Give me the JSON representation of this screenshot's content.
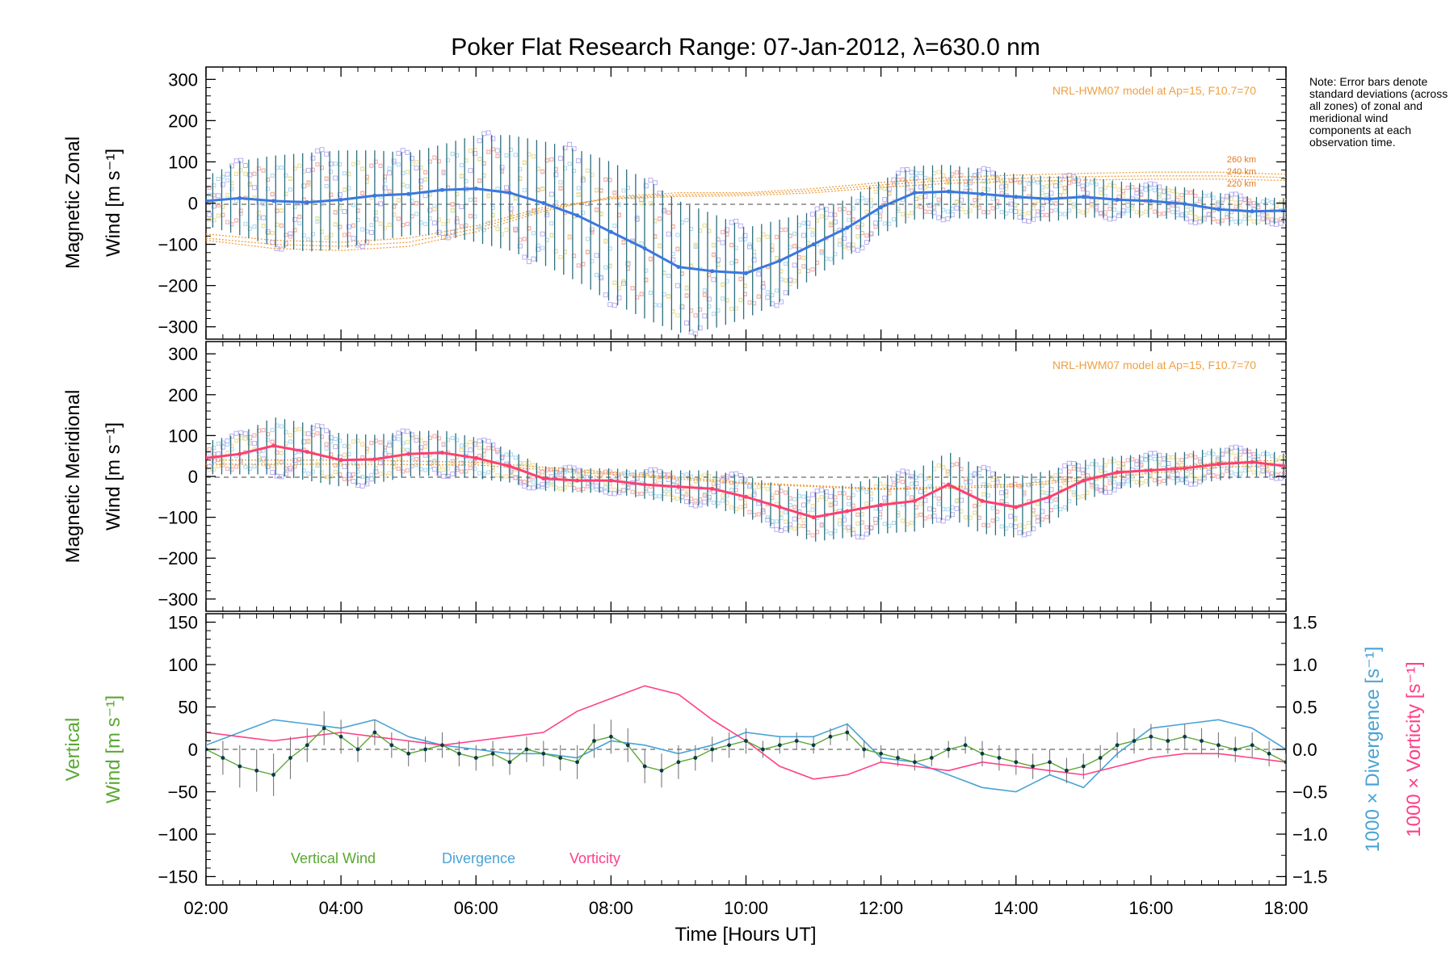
{
  "figure": {
    "title": "Poker Flat Research Range: 07-Jan-2012, λ=630.0 nm",
    "note": "Note: Error bars denote standard deviations (across all zones) of zonal and meridional wind components at each observation time.",
    "xlabel": "Time [Hours UT]",
    "xticks": [
      "02:00",
      "04:00",
      "06:00",
      "08:00",
      "10:00",
      "12:00",
      "14:00",
      "16:00",
      "18:00"
    ],
    "model_label": "NRL-HWM07 model at Ap=15, F10.7=70",
    "altitudes": [
      "260 km",
      "240 km",
      "220 km"
    ],
    "legend": [
      "Vertical Wind",
      "Divergence",
      "Vorticity"
    ]
  },
  "panels": {
    "zonal": {
      "ylabel_line1": "Magnetic Zonal",
      "ylabel_line2": "Wind [m s⁻¹]",
      "yticks": [
        "300",
        "200",
        "100",
        "0",
        "−100",
        "−200",
        "−300"
      ]
    },
    "meridional": {
      "ylabel_line1": "Magnetic Meridional",
      "ylabel_line2": "Wind [m s⁻¹]",
      "yticks": [
        "300",
        "200",
        "100",
        "0",
        "−100",
        "−200",
        "−300"
      ]
    },
    "vertical": {
      "ylabel_line1": "Vertical",
      "ylabel_line2": "Wind [m s⁻¹]",
      "yticks": [
        "150",
        "100",
        "50",
        "0",
        "−50",
        "−100",
        "−150"
      ],
      "right_label_div": "1000 × Divergence [s⁻¹]",
      "right_label_vort": "1000 × Vorticity [s⁻¹]",
      "right_ticks": [
        "1.5",
        "1.0",
        "0.5",
        "0.0",
        "−0.5",
        "−1.0",
        "−1.5"
      ]
    }
  },
  "colors": {
    "zonal_mean": "#3a78e0",
    "meridional_mean": "#ff3f6f",
    "vertical": "#5aa832",
    "divergence": "#4aa3d6",
    "vorticity": "#ff3f88",
    "model": "#f0a040",
    "scatter_purple": "#b8b0f0",
    "errorbar": "#2c6f80"
  },
  "chart_data": [
    {
      "type": "line",
      "title": "Magnetic Zonal Wind",
      "xlabel": "Time [Hours UT]",
      "ylabel": "Magnetic Zonal Wind [m s⁻¹]",
      "xlim": [
        2.0,
        18.0
      ],
      "ylim": [
        -330,
        330
      ],
      "series": [
        {
          "name": "mean",
          "x": [
            2.0,
            2.5,
            3.0,
            3.5,
            4.0,
            4.5,
            5.0,
            5.5,
            6.0,
            6.5,
            7.0,
            7.5,
            8.0,
            8.5,
            9.0,
            9.5,
            10.0,
            10.5,
            11.0,
            11.5,
            12.0,
            12.5,
            13.0,
            13.5,
            14.0,
            14.5,
            15.0,
            15.5,
            16.0,
            16.5,
            17.0,
            17.5,
            18.0
          ],
          "y": [
            5,
            12,
            5,
            2,
            8,
            18,
            22,
            32,
            35,
            25,
            0,
            -30,
            -70,
            -110,
            -155,
            -165,
            -170,
            -140,
            -100,
            -60,
            -10,
            25,
            28,
            22,
            15,
            10,
            15,
            8,
            5,
            -2,
            -15,
            -20,
            -18
          ],
          "yerr": [
            60,
            90,
            110,
            120,
            120,
            110,
            100,
            110,
            130,
            140,
            150,
            160,
            170,
            170,
            160,
            140,
            110,
            100,
            80,
            70,
            65,
            65,
            65,
            60,
            55,
            55,
            50,
            45,
            40,
            40,
            40,
            35,
            30
          ]
        },
        {
          "name": "model 260 km",
          "x": [
            2,
            3,
            4,
            5,
            6,
            7,
            8,
            9,
            10,
            11,
            12,
            13,
            14,
            15,
            16,
            17,
            18
          ],
          "y": [
            -90,
            -110,
            -115,
            -105,
            -70,
            -20,
            15,
            25,
            25,
            35,
            50,
            62,
            68,
            72,
            75,
            75,
            70
          ]
        },
        {
          "name": "model 240 km",
          "x": [
            2,
            3,
            4,
            5,
            6,
            7,
            8,
            9,
            10,
            11,
            12,
            13,
            14,
            15,
            16,
            17,
            18
          ],
          "y": [
            -85,
            -100,
            -105,
            -95,
            -62,
            -15,
            12,
            20,
            22,
            30,
            44,
            55,
            60,
            64,
            66,
            66,
            62
          ]
        },
        {
          "name": "model 220 km",
          "x": [
            2,
            3,
            4,
            5,
            6,
            7,
            8,
            9,
            10,
            11,
            12,
            13,
            14,
            15,
            16,
            17,
            18
          ],
          "y": [
            -75,
            -90,
            -95,
            -85,
            -55,
            -10,
            10,
            16,
            18,
            25,
            38,
            48,
            52,
            56,
            58,
            58,
            55
          ]
        }
      ]
    },
    {
      "type": "line",
      "title": "Magnetic Meridional Wind",
      "xlabel": "Time [Hours UT]",
      "ylabel": "Magnetic Meridional Wind [m s⁻¹]",
      "xlim": [
        2.0,
        18.0
      ],
      "ylim": [
        -330,
        330
      ],
      "series": [
        {
          "name": "mean",
          "x": [
            2.0,
            2.5,
            3.0,
            3.5,
            4.0,
            4.5,
            5.0,
            5.5,
            6.0,
            6.5,
            7.0,
            7.5,
            8.0,
            8.5,
            9.0,
            9.5,
            10.0,
            10.5,
            11.0,
            11.5,
            12.0,
            12.5,
            13.0,
            13.5,
            14.0,
            14.5,
            15.0,
            15.5,
            16.0,
            16.5,
            17.0,
            17.5,
            18.0
          ],
          "y": [
            45,
            55,
            75,
            60,
            40,
            42,
            55,
            58,
            45,
            25,
            -5,
            -10,
            -10,
            -20,
            -25,
            -30,
            -50,
            -75,
            -100,
            -85,
            -70,
            -60,
            -20,
            -60,
            -75,
            -50,
            -10,
            10,
            15,
            20,
            30,
            35,
            25
          ],
          "yerr": [
            40,
            50,
            70,
            70,
            65,
            60,
            55,
            55,
            50,
            40,
            30,
            30,
            30,
            35,
            40,
            45,
            50,
            55,
            60,
            65,
            70,
            75,
            80,
            80,
            75,
            65,
            50,
            40,
            40,
            40,
            40,
            35,
            30
          ]
        },
        {
          "name": "model 260 km",
          "x": [
            2,
            4,
            6,
            8,
            10,
            12,
            14,
            16,
            17,
            18
          ],
          "y": [
            40,
            40,
            35,
            10,
            -15,
            -30,
            -20,
            15,
            35,
            40
          ]
        },
        {
          "name": "model 220 km",
          "x": [
            2,
            4,
            6,
            8,
            10,
            12,
            14,
            16,
            17,
            18
          ],
          "y": [
            30,
            30,
            28,
            5,
            -18,
            -32,
            -25,
            8,
            22,
            28
          ]
        }
      ]
    },
    {
      "type": "line",
      "title": "Vertical Wind, Divergence, Vorticity",
      "xlabel": "Time [Hours UT]",
      "ylabel": "Vertical Wind [m s⁻¹]",
      "y2label": "1000 × Divergence [s⁻¹] / 1000 × Vorticity [s⁻¹]",
      "xlim": [
        2.0,
        18.0
      ],
      "ylim": [
        -160,
        160
      ],
      "y2lim": [
        -1.6,
        1.6
      ],
      "series": [
        {
          "name": "Vertical Wind",
          "axis": "left",
          "x": [
            2.0,
            2.25,
            2.5,
            2.75,
            3.0,
            3.25,
            3.5,
            3.75,
            4.0,
            4.25,
            4.5,
            4.75,
            5.0,
            5.25,
            5.5,
            5.75,
            6.0,
            6.25,
            6.5,
            6.75,
            7.0,
            7.25,
            7.5,
            7.75,
            8.0,
            8.25,
            8.5,
            8.75,
            9.0,
            9.25,
            9.5,
            9.75,
            10.0,
            10.25,
            10.5,
            10.75,
            11.0,
            11.25,
            11.5,
            11.75,
            12.0,
            12.25,
            12.5,
            12.75,
            13.0,
            13.25,
            13.5,
            13.75,
            14.0,
            14.25,
            14.5,
            14.75,
            15.0,
            15.25,
            15.5,
            15.75,
            16.0,
            16.25,
            16.5,
            16.75,
            17.0,
            17.25,
            17.5,
            17.75,
            18.0
          ],
          "y": [
            0,
            -10,
            -20,
            -25,
            -30,
            -10,
            5,
            25,
            15,
            0,
            20,
            5,
            -5,
            0,
            5,
            -5,
            -10,
            -5,
            -15,
            0,
            -5,
            -10,
            -15,
            10,
            15,
            5,
            -20,
            -25,
            -15,
            -10,
            0,
            5,
            10,
            0,
            5,
            10,
            5,
            15,
            20,
            0,
            -5,
            -10,
            -15,
            -10,
            0,
            5,
            -5,
            -10,
            -15,
            -20,
            -15,
            -25,
            -20,
            -10,
            5,
            10,
            15,
            10,
            15,
            10,
            5,
            0,
            5,
            -5,
            -15
          ],
          "yerr": [
            10,
            20,
            25,
            25,
            25,
            25,
            20,
            20,
            20,
            15,
            15,
            15,
            15,
            15,
            15,
            15,
            15,
            15,
            15,
            15,
            15,
            15,
            20,
            20,
            20,
            20,
            20,
            20,
            20,
            15,
            15,
            15,
            15,
            10,
            10,
            10,
            10,
            10,
            10,
            10,
            10,
            10,
            10,
            10,
            10,
            10,
            15,
            15,
            15,
            15,
            15,
            15,
            15,
            15,
            15,
            15,
            15,
            15,
            15,
            15,
            15,
            15,
            15,
            15,
            10
          ]
        },
        {
          "name": "Divergence",
          "axis": "right",
          "x": [
            2.0,
            2.5,
            3.0,
            3.5,
            4.0,
            4.5,
            5.0,
            5.5,
            6.0,
            6.5,
            7.0,
            7.5,
            8.0,
            8.5,
            9.0,
            9.5,
            10.0,
            10.5,
            11.0,
            11.5,
            12.0,
            12.5,
            13.0,
            13.5,
            14.0,
            14.5,
            15.0,
            15.5,
            16.0,
            16.5,
            17.0,
            17.5,
            18.0
          ],
          "y": [
            0.05,
            0.2,
            0.35,
            0.3,
            0.25,
            0.35,
            0.15,
            0.05,
            0.0,
            -0.05,
            -0.05,
            -0.1,
            0.1,
            0.05,
            -0.05,
            0.05,
            0.2,
            0.15,
            0.15,
            0.3,
            -0.1,
            -0.15,
            -0.3,
            -0.45,
            -0.5,
            -0.3,
            -0.45,
            -0.05,
            0.25,
            0.3,
            0.35,
            0.25,
            0.0
          ]
        },
        {
          "name": "Vorticity",
          "axis": "right",
          "x": [
            2.0,
            2.5,
            3.0,
            3.5,
            4.0,
            4.5,
            5.0,
            5.5,
            6.0,
            6.5,
            7.0,
            7.5,
            8.0,
            8.5,
            9.0,
            9.5,
            10.0,
            10.5,
            11.0,
            11.5,
            12.0,
            12.5,
            13.0,
            13.5,
            14.0,
            14.5,
            15.0,
            15.5,
            16.0,
            16.5,
            17.0,
            17.5,
            18.0
          ],
          "y": [
            0.2,
            0.15,
            0.1,
            0.15,
            0.2,
            0.15,
            0.1,
            0.05,
            0.1,
            0.15,
            0.2,
            0.45,
            0.6,
            0.75,
            0.65,
            0.35,
            0.1,
            -0.2,
            -0.35,
            -0.3,
            -0.15,
            -0.2,
            -0.25,
            -0.15,
            -0.2,
            -0.25,
            -0.3,
            -0.2,
            -0.1,
            -0.05,
            -0.05,
            -0.1,
            -0.15
          ]
        }
      ]
    }
  ]
}
